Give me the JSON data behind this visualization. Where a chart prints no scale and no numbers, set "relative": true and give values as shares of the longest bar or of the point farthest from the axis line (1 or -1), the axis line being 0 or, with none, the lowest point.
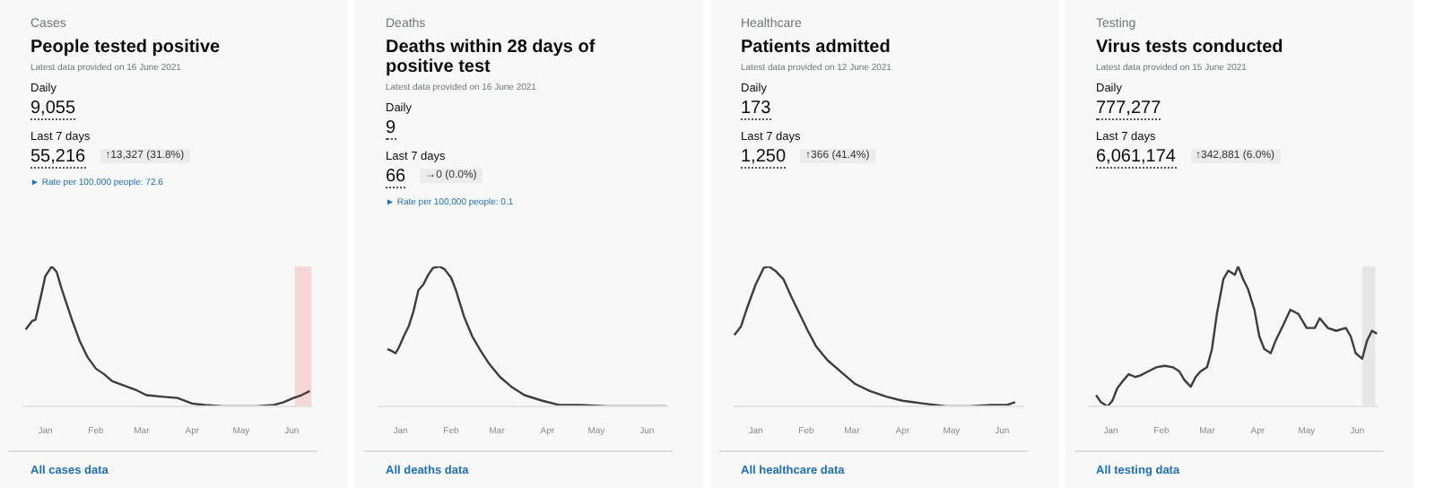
{
  "chart_data": [
    {
      "type": "line",
      "subtitle": "Cases",
      "title": "People tested positive",
      "relative": true,
      "tick_labels": "x",
      "xlim": [
        "2020-12-18",
        "2021-06-14"
      ],
      "xticks": [
        {
          "value": "2021-01-01",
          "label": "Jan"
        },
        {
          "value": "2021-02-01",
          "label": "Feb"
        },
        {
          "value": "2021-03-01",
          "label": "Mar"
        },
        {
          "value": "2021-04-01",
          "label": "Apr"
        },
        {
          "value": "2021-05-01",
          "label": "May"
        },
        {
          "value": "2021-06-01",
          "label": "Jun"
        }
      ],
      "annotations": [
        "Latest data provided on 16 June 2021",
        "Daily",
        "9,055",
        "Last 7 days",
        "55,216",
        "↑13,327 (31.8%)",
        "► Rate per 100,000 people: 72.6",
        "All cases data"
      ],
      "bands": [
        {
          "axis": "x",
          "from": "2021-06-03",
          "to": "2021-06-13",
          "color": "#f6d6d6"
        }
      ],
      "series": [
        {
          "color": "#3d3d3d",
          "x": [
            "2020-12-20",
            "2020-12-24",
            "2020-12-26",
            "2020-12-29",
            "2021-01-01",
            "2021-01-05",
            "2021-01-08",
            "2021-01-11",
            "2021-01-17",
            "2021-01-22",
            "2021-01-27",
            "2021-02-01",
            "2021-02-06",
            "2021-02-11",
            "2021-02-18",
            "2021-02-25",
            "2021-03-04",
            "2021-03-13",
            "2021-03-23",
            "2021-04-01",
            "2021-04-09",
            "2021-04-20",
            "2021-04-30",
            "2021-05-10",
            "2021-05-21",
            "2021-05-27",
            "2021-06-02",
            "2021-06-07",
            "2021-06-12"
          ],
          "values": [
            0.55,
            0.61,
            0.62,
            0.77,
            0.93,
            1,
            0.96,
            0.84,
            0.63,
            0.47,
            0.35,
            0.27,
            0.23,
            0.18,
            0.15,
            0.12,
            0.08,
            0.07,
            0.06,
            0.02,
            0.01,
            0,
            0,
            0,
            0.01,
            0.03,
            0.06,
            0.08,
            0.11
          ]
        }
      ]
    },
    {
      "type": "line",
      "subtitle": "Deaths",
      "title": "Deaths within 28 days of positive test",
      "relative": true,
      "tick_labels": "x",
      "xlim": [
        "2020-12-18",
        "2021-06-14"
      ],
      "xticks": [
        {
          "value": "2021-01-01",
          "label": "Jan"
        },
        {
          "value": "2021-02-01",
          "label": "Feb"
        },
        {
          "value": "2021-03-01",
          "label": "Mar"
        },
        {
          "value": "2021-04-01",
          "label": "Apr"
        },
        {
          "value": "2021-05-01",
          "label": "May"
        },
        {
          "value": "2021-06-01",
          "label": "Jun"
        }
      ],
      "annotations": [
        "Latest data provided on 16 June 2021",
        "Daily",
        "9",
        "Last 7 days",
        "66",
        "→0 (0.0%)",
        "► Rate per 100,000 people: 0.1",
        "All deaths data"
      ],
      "series": [
        {
          "color": "#3d3d3d",
          "x": [
            "2020-12-24",
            "2020-12-26",
            "2020-12-29",
            "2020-12-31",
            "2021-01-03",
            "2021-01-06",
            "2021-01-09",
            "2021-01-12",
            "2021-01-15",
            "2021-01-18",
            "2021-01-21",
            "2021-01-25",
            "2021-01-28",
            "2021-02-01",
            "2021-02-04",
            "2021-02-09",
            "2021-02-14",
            "2021-02-19",
            "2021-02-24",
            "2021-03-03",
            "2021-03-10",
            "2021-03-18",
            "2021-03-29",
            "2021-04-08",
            "2021-04-21",
            "2021-05-08",
            "2021-05-25",
            "2021-06-13"
          ],
          "values": [
            0.41,
            0.4,
            0.38,
            0.42,
            0.5,
            0.57,
            0.68,
            0.83,
            0.87,
            0.94,
            0.99,
            1,
            0.98,
            0.92,
            0.83,
            0.64,
            0.5,
            0.4,
            0.31,
            0.21,
            0.14,
            0.08,
            0.04,
            0.01,
            0.01,
            0,
            0,
            0
          ]
        }
      ]
    },
    {
      "type": "line",
      "subtitle": "Healthcare",
      "title": "Patients admitted",
      "relative": true,
      "tick_labels": "x",
      "xlim": [
        "2020-12-18",
        "2021-06-14"
      ],
      "xticks": [
        {
          "value": "2021-01-01",
          "label": "Jan"
        },
        {
          "value": "2021-02-01",
          "label": "Feb"
        },
        {
          "value": "2021-03-01",
          "label": "Mar"
        },
        {
          "value": "2021-04-01",
          "label": "Apr"
        },
        {
          "value": "2021-05-01",
          "label": "May"
        },
        {
          "value": "2021-06-01",
          "label": "Jun"
        }
      ],
      "annotations": [
        "Latest data provided on 12 June 2021",
        "Daily",
        "173",
        "Last 7 days",
        "1,250",
        "↑366 (41.4%)",
        "All healthcare data"
      ],
      "series": [
        {
          "color": "#3d3d3d",
          "x": [
            "2020-12-19",
            "2020-12-23",
            "2020-12-27",
            "2021-01-01",
            "2021-01-06",
            "2021-01-09",
            "2021-01-13",
            "2021-01-18",
            "2021-01-23",
            "2021-01-28",
            "2021-02-02",
            "2021-02-07",
            "2021-02-14",
            "2021-02-23",
            "2021-03-03",
            "2021-03-12",
            "2021-03-22",
            "2021-04-01",
            "2021-04-14",
            "2021-04-28",
            "2021-05-12",
            "2021-05-25",
            "2021-06-04",
            "2021-06-09"
          ],
          "values": [
            0.51,
            0.57,
            0.71,
            0.87,
            0.99,
            1,
            0.97,
            0.91,
            0.78,
            0.66,
            0.54,
            0.43,
            0.33,
            0.24,
            0.16,
            0.11,
            0.07,
            0.04,
            0.02,
            0,
            0,
            0.01,
            0.01,
            0.03
          ]
        }
      ]
    },
    {
      "type": "line",
      "subtitle": "Testing",
      "title": "Virus tests conducted",
      "relative": true,
      "tick_labels": "x",
      "xlim": [
        "2020-12-18",
        "2021-06-14"
      ],
      "xticks": [
        {
          "value": "2021-01-01",
          "label": "Jan"
        },
        {
          "value": "2021-02-01",
          "label": "Feb"
        },
        {
          "value": "2021-03-01",
          "label": "Mar"
        },
        {
          "value": "2021-04-01",
          "label": "Apr"
        },
        {
          "value": "2021-05-01",
          "label": "May"
        },
        {
          "value": "2021-06-01",
          "label": "Jun"
        }
      ],
      "annotations": [
        "Latest data provided on 15 June 2021",
        "Daily",
        "777,277",
        "Last 7 days",
        "6,061,174",
        "↑342,881 (6.0%)",
        "All testing data"
      ],
      "bands": [
        {
          "axis": "x",
          "from": "2021-06-04",
          "to": "2021-06-12",
          "color": "#e6e6e6"
        }
      ],
      "series": [
        {
          "color": "#3d3d3d",
          "x": [
            "2020-12-23",
            "2020-12-26",
            "2020-12-30",
            "2021-01-02",
            "2021-01-05",
            "2021-01-09",
            "2021-01-12",
            "2021-01-16",
            "2021-01-19",
            "2021-01-24",
            "2021-01-29",
            "2021-02-03",
            "2021-02-08",
            "2021-02-12",
            "2021-02-15",
            "2021-02-19",
            "2021-02-22",
            "2021-02-25",
            "2021-03-01",
            "2021-03-04",
            "2021-03-07",
            "2021-03-11",
            "2021-03-14",
            "2021-03-18",
            "2021-03-20",
            "2021-03-23",
            "2021-03-26",
            "2021-03-30",
            "2021-04-02",
            "2021-04-05",
            "2021-04-09",
            "2021-04-12",
            "2021-04-17",
            "2021-04-21",
            "2021-04-26",
            "2021-05-01",
            "2021-05-06",
            "2021-05-09",
            "2021-05-14",
            "2021-05-19",
            "2021-05-25",
            "2021-05-28",
            "2021-05-31",
            "2021-06-04",
            "2021-06-07",
            "2021-06-10",
            "2021-06-13"
          ],
          "values": [
            0.08,
            0.03,
            0,
            0.04,
            0.13,
            0.19,
            0.23,
            0.21,
            0.22,
            0.25,
            0.28,
            0.29,
            0.28,
            0.25,
            0.19,
            0.14,
            0.21,
            0.25,
            0.28,
            0.41,
            0.66,
            0.91,
            0.97,
            0.94,
            1,
            0.91,
            0.84,
            0.69,
            0.5,
            0.41,
            0.38,
            0.47,
            0.59,
            0.69,
            0.66,
            0.56,
            0.56,
            0.63,
            0.56,
            0.54,
            0.56,
            0.5,
            0.38,
            0.34,
            0.47,
            0.54,
            0.52
          ]
        }
      ]
    }
  ]
}
